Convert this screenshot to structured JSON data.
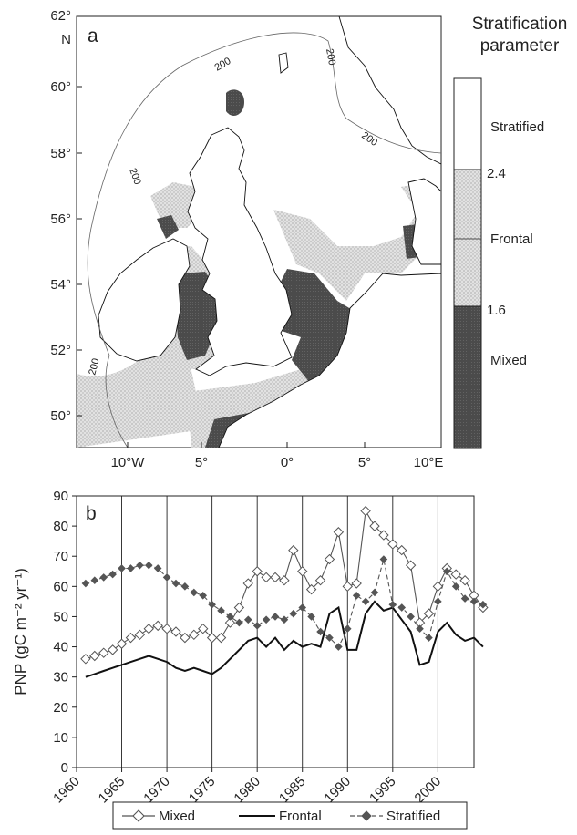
{
  "panel_a": {
    "panel_label": "a",
    "lat_labels": [
      "62°",
      "N",
      "60°",
      "58°",
      "56°",
      "54°",
      "52°",
      "50°"
    ],
    "lon_labels": [
      "10°W",
      "5°",
      "0°",
      "5°",
      "10°E"
    ],
    "contour_label": "200",
    "legend": {
      "title_line1": "Stratification",
      "title_line2": "parameter",
      "classes": [
        "Stratified",
        "Frontal",
        "Mixed"
      ],
      "thresholds": [
        "2.4",
        "1.6"
      ]
    },
    "colors": {
      "mixed": "#4a4a4a",
      "frontal": "#d7d7d7",
      "stratified": "#ffffff",
      "land": "#ffffff",
      "coast": "#111111"
    }
  },
  "chart_data": {
    "type": "line",
    "panel_label": "b",
    "title": "",
    "xlabel": "",
    "ylabel": "PNP (gC m⁻² yr⁻¹)",
    "ylim": [
      0,
      90
    ],
    "yticks": [
      0,
      10,
      20,
      30,
      40,
      50,
      60,
      70,
      80,
      90
    ],
    "xlim": [
      1960,
      2004
    ],
    "xticks": [
      1960,
      1965,
      1970,
      1975,
      1980,
      1985,
      1990,
      1995,
      2000
    ],
    "grid": "vertical",
    "legend_position": "bottom",
    "series": [
      {
        "name": "Mixed",
        "marker": "open-diamond",
        "line": "solid",
        "color": "#555555",
        "points": [
          [
            1961,
            36
          ],
          [
            1962,
            37
          ],
          [
            1963,
            38
          ],
          [
            1964,
            39
          ],
          [
            1965,
            41
          ],
          [
            1966,
            43
          ],
          [
            1967,
            44
          ],
          [
            1968,
            46
          ],
          [
            1969,
            47
          ],
          [
            1970,
            46
          ],
          [
            1971,
            45
          ],
          [
            1972,
            43
          ],
          [
            1973,
            44
          ],
          [
            1974,
            46
          ],
          [
            1975,
            43
          ],
          [
            1976,
            43
          ],
          [
            1977,
            48
          ],
          [
            1978,
            53
          ],
          [
            1979,
            61
          ],
          [
            1980,
            65
          ],
          [
            1981,
            63
          ],
          [
            1982,
            63
          ],
          [
            1983,
            62
          ],
          [
            1984,
            72
          ],
          [
            1985,
            65
          ],
          [
            1986,
            59
          ],
          [
            1987,
            62
          ],
          [
            1988,
            69
          ],
          [
            1989,
            78
          ],
          [
            1990,
            60
          ],
          [
            1991,
            61
          ],
          [
            1992,
            85
          ],
          [
            1993,
            80
          ],
          [
            1994,
            77
          ],
          [
            1995,
            74
          ],
          [
            1996,
            72
          ],
          [
            1997,
            67
          ],
          [
            1998,
            48
          ],
          [
            1999,
            51
          ],
          [
            2000,
            60
          ],
          [
            2001,
            66
          ],
          [
            2002,
            64
          ],
          [
            2003,
            62
          ],
          [
            2004,
            57
          ],
          [
            2005,
            53
          ]
        ]
      },
      {
        "name": "Frontal",
        "marker": "none",
        "line": "solid-thick",
        "color": "#111111",
        "points": [
          [
            1961,
            30
          ],
          [
            1962,
            31
          ],
          [
            1963,
            32
          ],
          [
            1964,
            33
          ],
          [
            1965,
            34
          ],
          [
            1966,
            35
          ],
          [
            1967,
            36
          ],
          [
            1968,
            37
          ],
          [
            1969,
            36
          ],
          [
            1970,
            35
          ],
          [
            1971,
            33
          ],
          [
            1972,
            32
          ],
          [
            1973,
            33
          ],
          [
            1974,
            32
          ],
          [
            1975,
            31
          ],
          [
            1976,
            33
          ],
          [
            1977,
            36
          ],
          [
            1978,
            39
          ],
          [
            1979,
            42
          ],
          [
            1980,
            43
          ],
          [
            1981,
            40
          ],
          [
            1982,
            43
          ],
          [
            1983,
            39
          ],
          [
            1984,
            42
          ],
          [
            1985,
            40
          ],
          [
            1986,
            41
          ],
          [
            1987,
            40
          ],
          [
            1988,
            51
          ],
          [
            1989,
            53
          ],
          [
            1990,
            39
          ],
          [
            1991,
            39
          ],
          [
            1992,
            51
          ],
          [
            1993,
            55
          ],
          [
            1994,
            52
          ],
          [
            1995,
            53
          ],
          [
            1996,
            49
          ],
          [
            1997,
            45
          ],
          [
            1998,
            34
          ],
          [
            1999,
            35
          ],
          [
            2000,
            45
          ],
          [
            2001,
            48
          ],
          [
            2002,
            44
          ],
          [
            2003,
            42
          ],
          [
            2004,
            43
          ],
          [
            2005,
            40
          ]
        ]
      },
      {
        "name": "Stratified",
        "marker": "filled-diamond",
        "line": "dashed",
        "color": "#555555",
        "points": [
          [
            1961,
            61
          ],
          [
            1962,
            62
          ],
          [
            1963,
            63
          ],
          [
            1964,
            64
          ],
          [
            1965,
            66
          ],
          [
            1966,
            66
          ],
          [
            1967,
            67
          ],
          [
            1968,
            67
          ],
          [
            1969,
            66
          ],
          [
            1970,
            63
          ],
          [
            1971,
            61
          ],
          [
            1972,
            60
          ],
          [
            1973,
            58
          ],
          [
            1974,
            57
          ],
          [
            1975,
            54
          ],
          [
            1976,
            52
          ],
          [
            1977,
            50
          ],
          [
            1978,
            48
          ],
          [
            1979,
            49
          ],
          [
            1980,
            47
          ],
          [
            1981,
            49
          ],
          [
            1982,
            50
          ],
          [
            1983,
            49
          ],
          [
            1984,
            51
          ],
          [
            1985,
            53
          ],
          [
            1986,
            50
          ],
          [
            1987,
            45
          ],
          [
            1988,
            43
          ],
          [
            1989,
            40
          ],
          [
            1990,
            46
          ],
          [
            1991,
            57
          ],
          [
            1992,
            55
          ],
          [
            1993,
            58
          ],
          [
            1994,
            69
          ],
          [
            1995,
            54
          ],
          [
            1996,
            53
          ],
          [
            1997,
            50
          ],
          [
            1998,
            46
          ],
          [
            1999,
            43
          ],
          [
            2000,
            55
          ],
          [
            2001,
            65
          ],
          [
            2002,
            60
          ],
          [
            2003,
            56
          ],
          [
            2004,
            55
          ],
          [
            2005,
            54
          ]
        ]
      }
    ]
  }
}
